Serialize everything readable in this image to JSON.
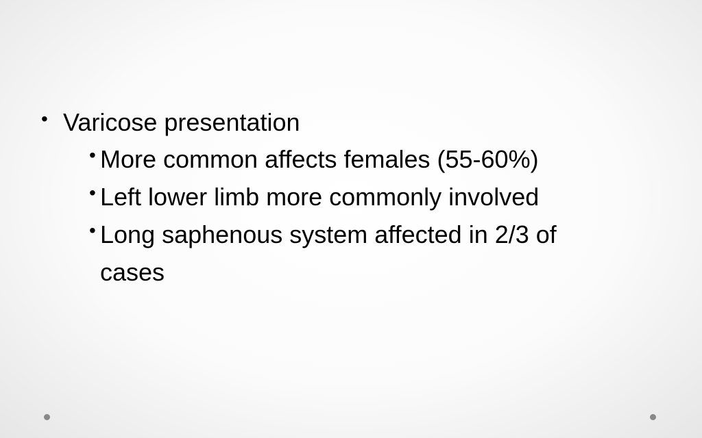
{
  "slide": {
    "bullets": [
      {
        "text": "Varicose presentation",
        "sub": [
          "More common affects females (55-60%)",
          "Left lower limb more commonly involved",
          "Long saphenous system affected in 2/3 of cases"
        ]
      }
    ]
  }
}
